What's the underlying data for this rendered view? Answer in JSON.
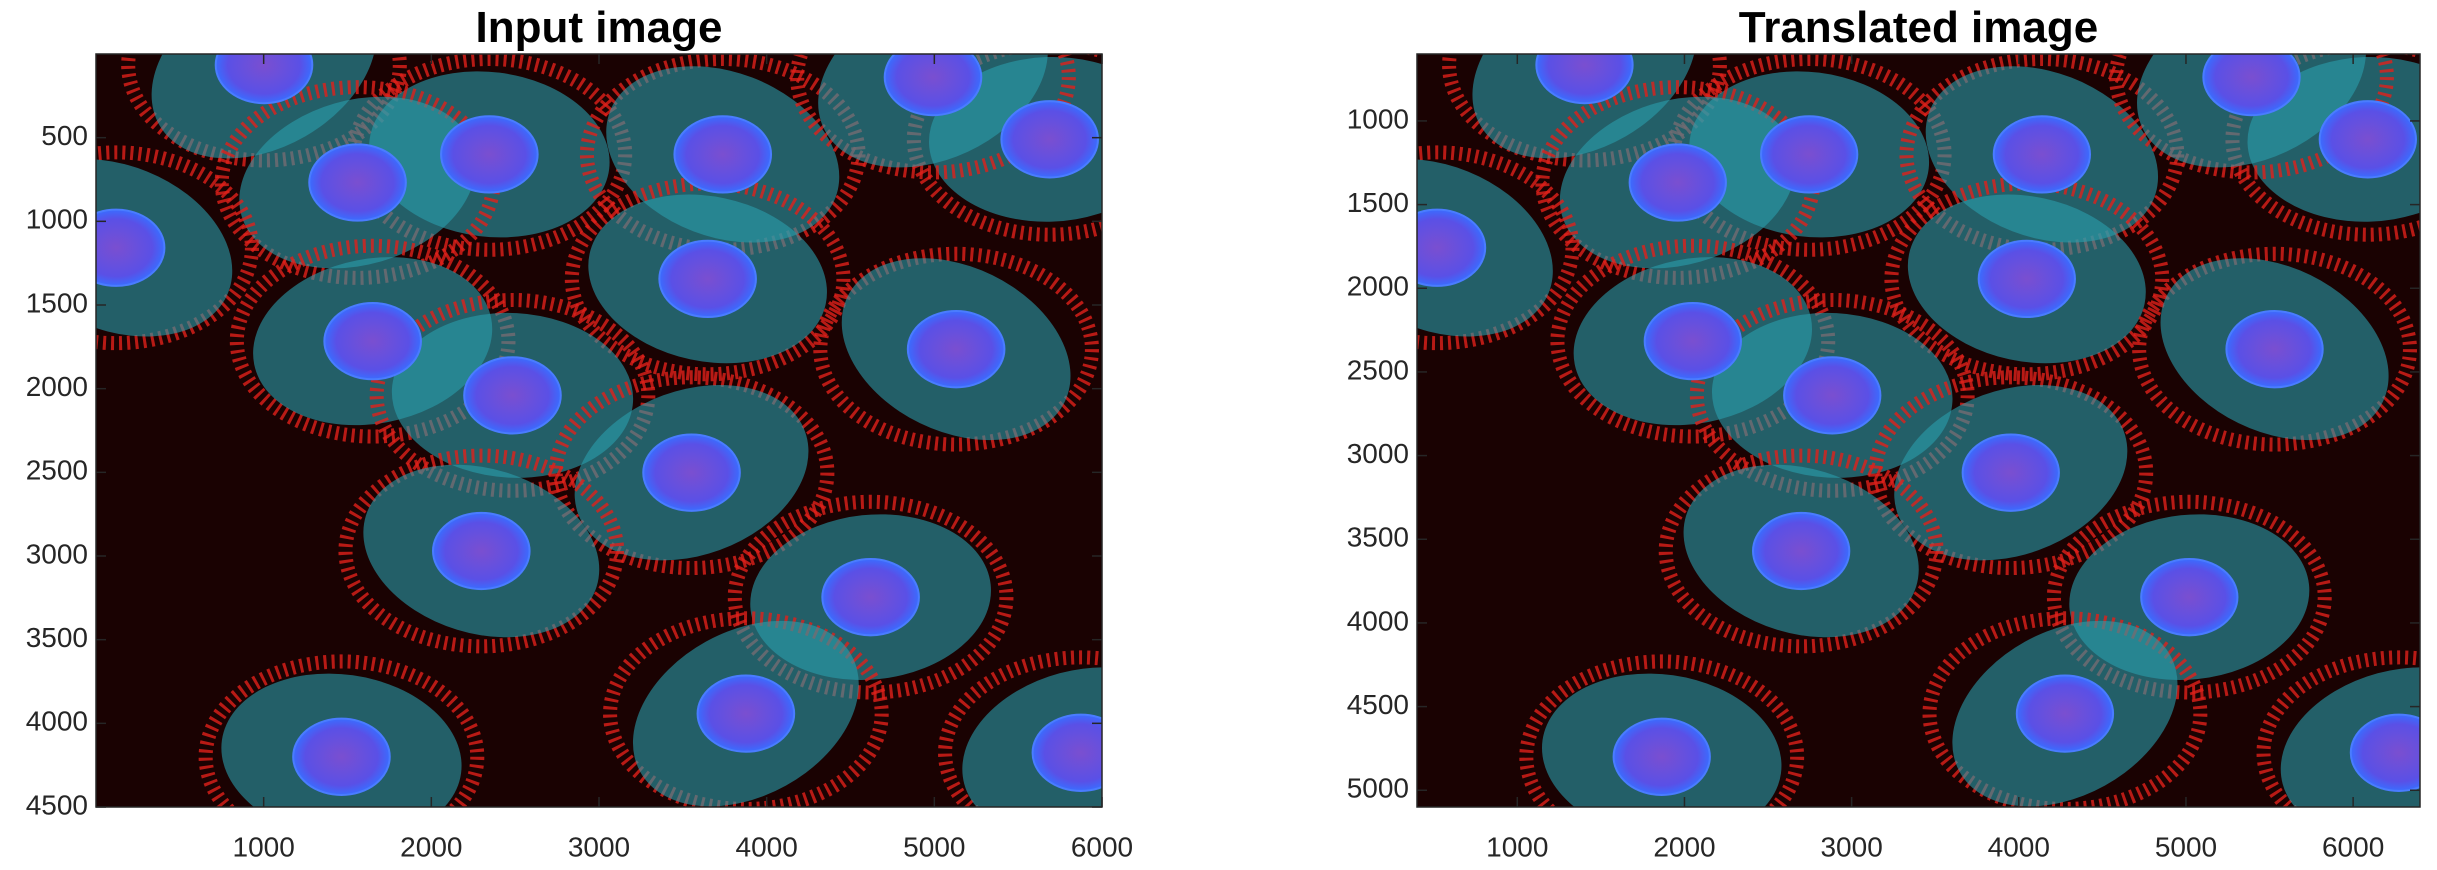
{
  "chart_data": [
    {
      "type": "image",
      "title": "Input image",
      "xlim": [
        0,
        6000
      ],
      "ylim": [
        0,
        4500
      ],
      "y_reversed": true,
      "xticks": [
        1000,
        2000,
        3000,
        4000,
        5000,
        6000
      ],
      "yticks": [
        500,
        1000,
        1500,
        2000,
        2500,
        3000,
        3500,
        4000,
        4500
      ]
    },
    {
      "type": "image",
      "title": "Translated image",
      "xlim": [
        400,
        6400
      ],
      "ylim": [
        600,
        5100
      ],
      "y_reversed": true,
      "xticks": [
        1000,
        2000,
        3000,
        4000,
        5000,
        6000
      ],
      "yticks": [
        1000,
        1500,
        2000,
        2500,
        3000,
        3500,
        4000,
        4500,
        5000
      ]
    }
  ]
}
